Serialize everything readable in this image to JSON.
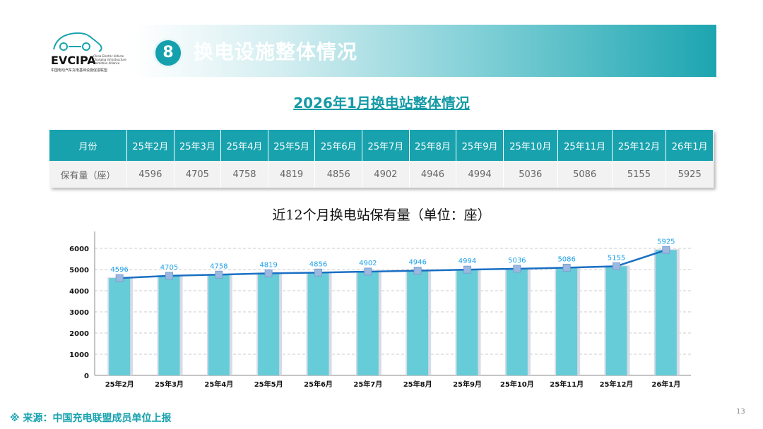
{
  "header": {
    "section_number": "8",
    "title": "换电设施整体情况"
  },
  "logo": {
    "name": "EVCIPA",
    "english": "China Electric Vehicle Charging Infrastructure Promotion Alliance",
    "chinese": "中国电动汽车充电基础设施促进联盟"
  },
  "subtitle": "2026年1月换电站整体情况",
  "table": {
    "headers": [
      "月份",
      "25年2月",
      "25年3月",
      "25年4月",
      "25年5月",
      "25年6月",
      "25年7月",
      "25年8月",
      "25年9月",
      "25年10月",
      "25年11月",
      "25年12月",
      "26年1月"
    ],
    "row": [
      "保有量（座）",
      "4596",
      "4705",
      "4758",
      "4819",
      "4856",
      "4902",
      "4946",
      "4994",
      "5036",
      "5086",
      "5155",
      "5925"
    ]
  },
  "chart_data": {
    "type": "bar",
    "title": "近12个月换电站保有量（单位：座）",
    "categories": [
      "25年2月",
      "25年3月",
      "25年4月",
      "25年5月",
      "25年6月",
      "25年7月",
      "25年8月",
      "25年9月",
      "25年10月",
      "25年11月",
      "25年12月",
      "26年1月"
    ],
    "values": [
      4596,
      4705,
      4758,
      4819,
      4856,
      4902,
      4946,
      4994,
      5036,
      5086,
      5155,
      5925
    ],
    "overlay": "line",
    "ylim": [
      0,
      6000
    ],
    "yticks": [
      0,
      1000,
      2000,
      3000,
      4000,
      5000,
      6000
    ],
    "grid": true,
    "colors": {
      "bar": "#66ccd8",
      "line": "#1a6fc4",
      "marker": "#9bb8e0",
      "label": "#1aa0e8"
    }
  },
  "footer": {
    "source": "※ 来源：中国充电联盟成员单位上报",
    "page": "13"
  }
}
